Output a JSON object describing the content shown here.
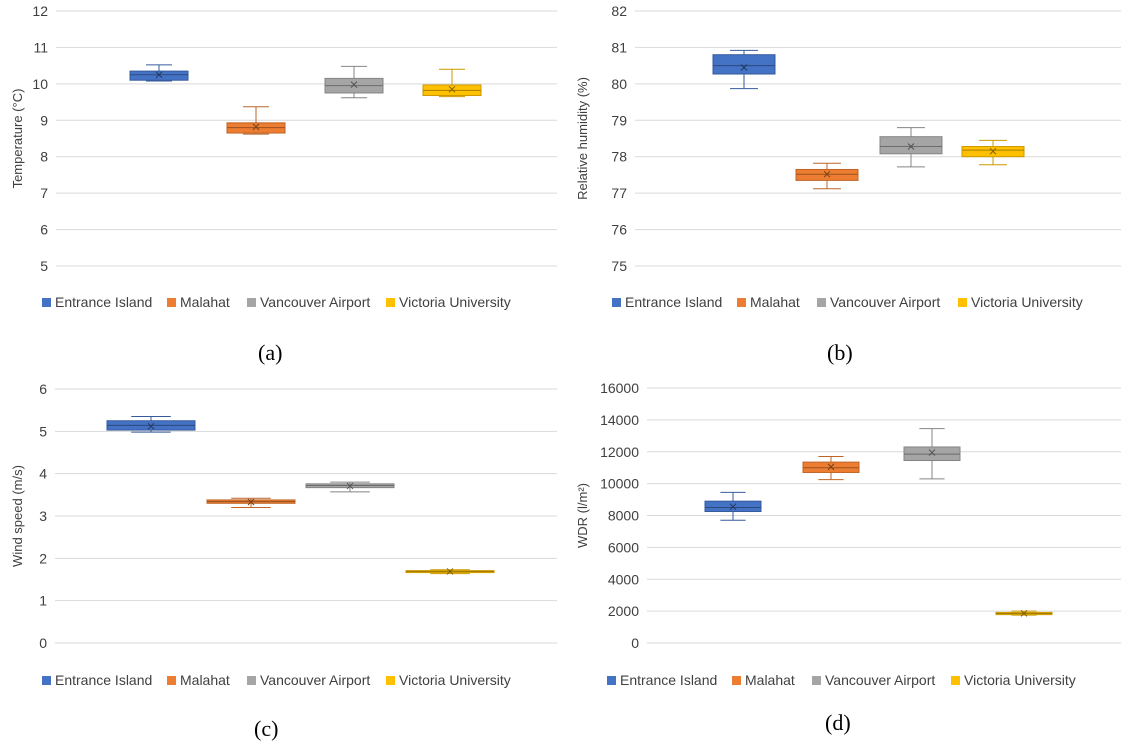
{
  "colors": {
    "Entrance Island": "#4472C4",
    "Malahat": "#ED7D31",
    "Vancouver Airport": "#A5A5A5",
    "Victoria University": "#FFC000"
  },
  "chart_data": [
    {
      "type": "box",
      "caption": "(a)",
      "ylabel": "Temperature (°C)",
      "ylim": [
        5,
        12
      ],
      "yticks": [
        "5",
        "6",
        "7",
        "8",
        "9",
        "10",
        "11",
        "12"
      ],
      "grid": true,
      "legend_placement": "bottom",
      "categories": [
        "Entrance Island",
        "Malahat",
        "Vancouver Airport",
        "Victoria University"
      ],
      "boxes": [
        {
          "name": "Entrance Island",
          "min": 10.08,
          "q1": 10.1,
          "median": 10.25,
          "q3": 10.35,
          "max": 10.52,
          "mean": 10.25
        },
        {
          "name": "Malahat",
          "min": 8.62,
          "q1": 8.65,
          "median": 8.8,
          "q3": 8.93,
          "max": 9.37,
          "mean": 8.82
        },
        {
          "name": "Vancouver Airport",
          "min": 9.62,
          "q1": 9.75,
          "median": 9.95,
          "q3": 10.15,
          "max": 10.48,
          "mean": 9.98
        },
        {
          "name": "Victoria University",
          "min": 9.65,
          "q1": 9.68,
          "median": 9.82,
          "q3": 9.97,
          "max": 10.4,
          "mean": 9.85
        }
      ]
    },
    {
      "type": "box",
      "caption": "(b)",
      "ylabel": "Relative humidity (%)",
      "ylim": [
        75,
        82
      ],
      "yticks": [
        "75",
        "76",
        "77",
        "78",
        "79",
        "80",
        "81",
        "82"
      ],
      "grid": true,
      "legend_placement": "bottom",
      "categories": [
        "Entrance Island",
        "Malahat",
        "Vancouver Airport",
        "Victoria University"
      ],
      "boxes": [
        {
          "name": "Entrance Island",
          "min": 79.87,
          "q1": 80.27,
          "median": 80.5,
          "q3": 80.8,
          "max": 80.92,
          "mean": 80.45
        },
        {
          "name": "Malahat",
          "min": 77.12,
          "q1": 77.35,
          "median": 77.52,
          "q3": 77.65,
          "max": 77.82,
          "mean": 77.52
        },
        {
          "name": "Vancouver Airport",
          "min": 77.72,
          "q1": 78.08,
          "median": 78.28,
          "q3": 78.55,
          "max": 78.8,
          "mean": 78.28
        },
        {
          "name": "Victoria University",
          "min": 77.78,
          "q1": 78.0,
          "median": 78.18,
          "q3": 78.28,
          "max": 78.45,
          "mean": 78.15
        }
      ]
    },
    {
      "type": "box",
      "caption": "(c)",
      "ylabel": "Wind speed (m/s)",
      "ylim": [
        0,
        6
      ],
      "yticks": [
        "0",
        "1",
        "2",
        "3",
        "4",
        "5",
        "6"
      ],
      "grid": true,
      "legend_placement": "bottom",
      "categories": [
        "Entrance Island",
        "Malahat",
        "Vancouver Airport",
        "Victoria University"
      ],
      "boxes": [
        {
          "name": "Entrance Island",
          "min": 4.98,
          "q1": 5.03,
          "median": 5.14,
          "q3": 5.25,
          "max": 5.35,
          "mean": 5.12
        },
        {
          "name": "Malahat",
          "min": 3.2,
          "q1": 3.3,
          "median": 3.34,
          "q3": 3.38,
          "max": 3.42,
          "mean": 3.33
        },
        {
          "name": "Vancouver Airport",
          "min": 3.57,
          "q1": 3.67,
          "median": 3.72,
          "q3": 3.76,
          "max": 3.8,
          "mean": 3.71
        },
        {
          "name": "Victoria University",
          "min": 1.64,
          "q1": 1.67,
          "median": 1.69,
          "q3": 1.71,
          "max": 1.73,
          "mean": 1.69
        }
      ]
    },
    {
      "type": "box",
      "caption": "(d)",
      "ylabel": "WDR (l/m²)",
      "ylim": [
        0,
        16000
      ],
      "yticks": [
        "0",
        "2000",
        "4000",
        "6000",
        "8000",
        "10000",
        "12000",
        "14000",
        "16000"
      ],
      "grid": true,
      "legend_placement": "bottom",
      "categories": [
        "Entrance Island",
        "Malahat",
        "Vancouver Airport",
        "Victoria University"
      ],
      "boxes": [
        {
          "name": "Entrance Island",
          "min": 7700,
          "q1": 8250,
          "median": 8500,
          "q3": 8900,
          "max": 9450,
          "mean": 8550
        },
        {
          "name": "Malahat",
          "min": 10250,
          "q1": 10700,
          "median": 11000,
          "q3": 11350,
          "max": 11700,
          "mean": 11050
        },
        {
          "name": "Vancouver Airport",
          "min": 10300,
          "q1": 11450,
          "median": 11850,
          "q3": 12300,
          "max": 13450,
          "mean": 11950
        },
        {
          "name": "Victoria University",
          "min": 1750,
          "q1": 1780,
          "median": 1850,
          "q3": 1920,
          "max": 2000,
          "mean": 1860
        }
      ]
    }
  ]
}
